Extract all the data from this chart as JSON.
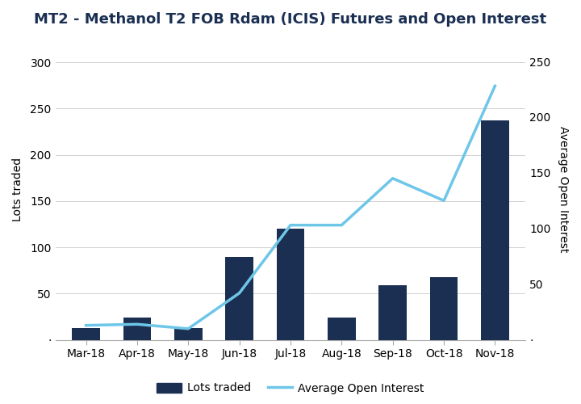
{
  "title": "MT2 - Methanol T2 FOB Rdam (ICIS) Futures and Open Interest",
  "categories": [
    "Mar-18",
    "Apr-18",
    "May-18",
    "Jun-18",
    "Jul-18",
    "Aug-18",
    "Sep-18",
    "Oct-18",
    "Nov-18"
  ],
  "lots_traded": [
    13,
    24,
    13,
    90,
    120,
    24,
    59,
    68,
    237
  ],
  "avg_open_interest": [
    13,
    14,
    10,
    42,
    103,
    103,
    145,
    125,
    228
  ],
  "bar_color": "#1a2f52",
  "line_color": "#6ec6e8",
  "background_color": "#ffffff",
  "ylabel_left": "Lots traded",
  "ylabel_right": "Average Open Interest",
  "ylim_left": [
    0,
    325
  ],
  "ylim_right": [
    0,
    270
  ],
  "yticks_left": [
    0,
    50,
    100,
    150,
    200,
    250,
    300
  ],
  "yticks_right": [
    0,
    50,
    100,
    150,
    200,
    250
  ],
  "legend_labels": [
    "Lots traded",
    "Average Open Interest"
  ],
  "title_fontsize": 13,
  "axis_fontsize": 10,
  "tick_fontsize": 10
}
